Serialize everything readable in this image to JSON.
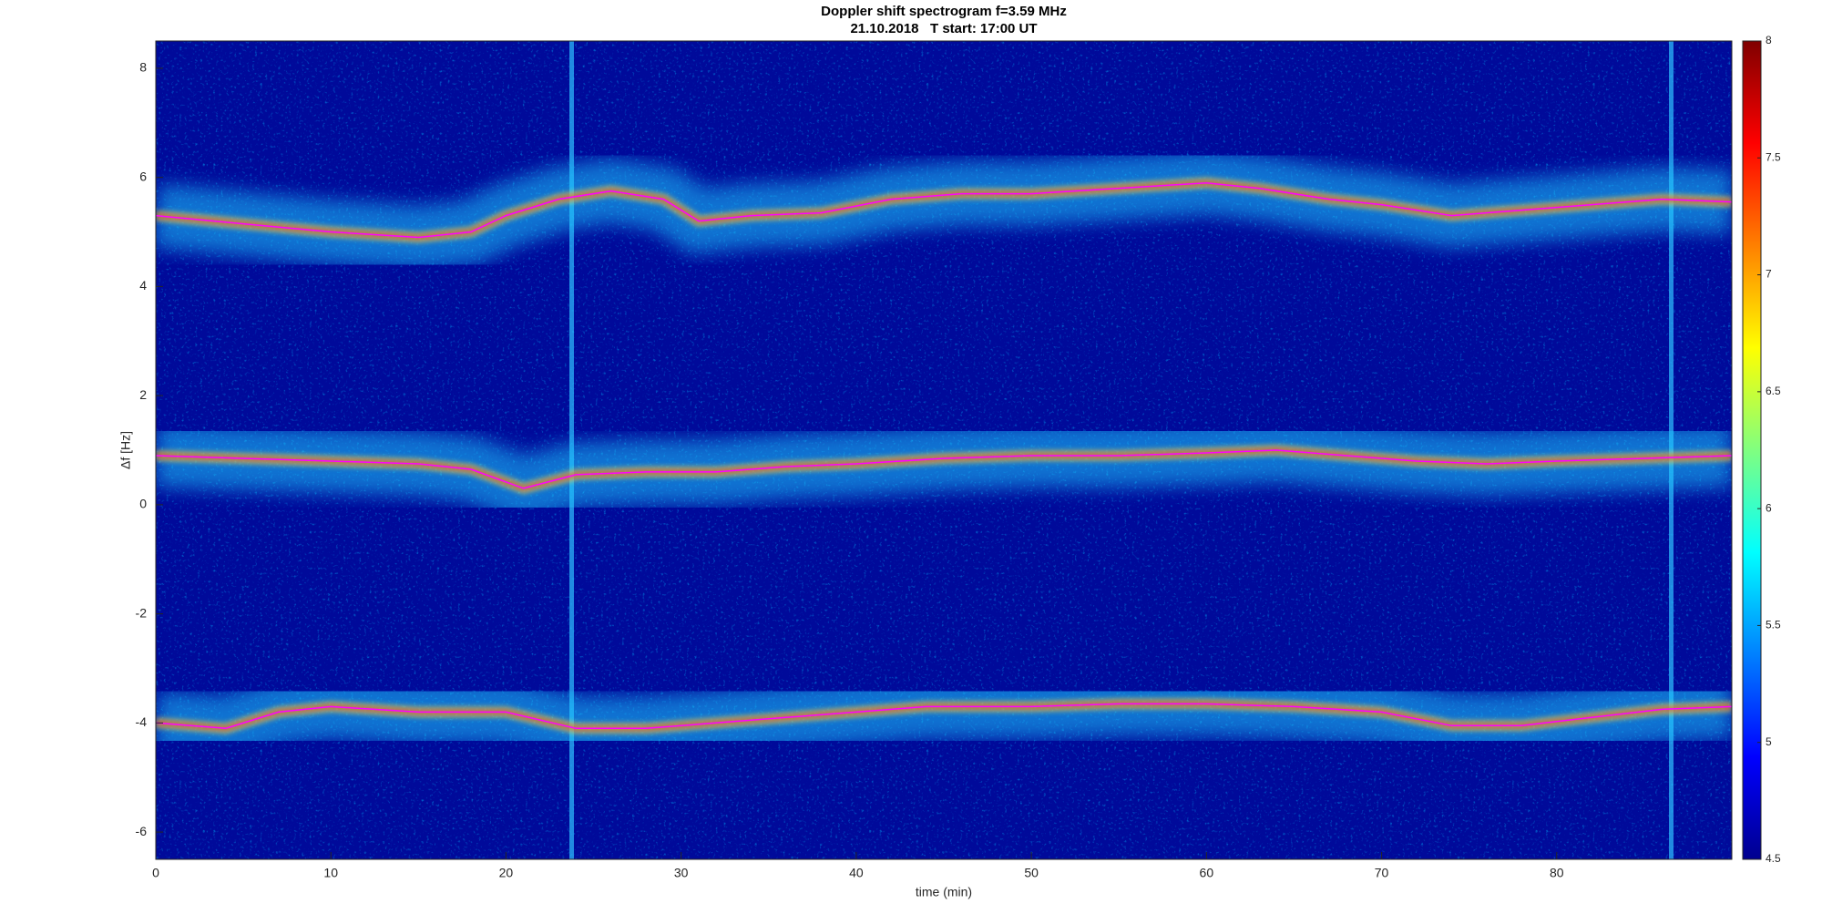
{
  "chart_data": {
    "type": "spectrogram",
    "title": "Doppler shift spectrogram f=3.59 MHz",
    "subtitle": "21.10.2018   T start: 17:00 UT",
    "xlabel": "time (min)",
    "ylabel": "Δf [Hz]",
    "xlim": [
      0,
      90
    ],
    "xticks": [
      0,
      10,
      20,
      30,
      40,
      50,
      60,
      70,
      80
    ],
    "ylim": [
      -6.5,
      8.5
    ],
    "yticks": [
      -6,
      -4,
      -2,
      0,
      2,
      4,
      6,
      8
    ],
    "colormap": "jet",
    "clim": [
      4.5,
      8
    ],
    "cticks": [
      4.5,
      5,
      5.5,
      6,
      6.5,
      7,
      7.5,
      8
    ],
    "series": [
      {
        "color": "#ff00ff",
        "x": [
          0,
          5,
          10,
          15,
          18,
          20,
          23,
          26,
          29,
          31,
          34,
          38,
          42,
          46,
          50,
          55,
          60,
          63,
          67,
          70,
          74,
          78,
          82,
          86,
          90
        ],
        "values": [
          5.3,
          5.15,
          5.0,
          4.9,
          5.0,
          5.3,
          5.6,
          5.75,
          5.6,
          5.2,
          5.3,
          5.35,
          5.6,
          5.7,
          5.7,
          5.8,
          5.9,
          5.8,
          5.6,
          5.5,
          5.3,
          5.4,
          5.5,
          5.6,
          5.55
        ]
      },
      {
        "color": "#ff00ff",
        "x": [
          0,
          5,
          10,
          15,
          18,
          21,
          24,
          28,
          32,
          36,
          40,
          45,
          50,
          55,
          60,
          64,
          68,
          72,
          76,
          80,
          85,
          90
        ],
        "values": [
          0.9,
          0.85,
          0.8,
          0.75,
          0.65,
          0.3,
          0.55,
          0.6,
          0.6,
          0.7,
          0.75,
          0.85,
          0.9,
          0.9,
          0.95,
          1.0,
          0.9,
          0.8,
          0.75,
          0.8,
          0.85,
          0.9
        ]
      },
      {
        "color": "#ff00ff",
        "x": [
          0,
          4,
          7,
          10,
          15,
          20,
          24,
          28,
          32,
          36,
          40,
          44,
          50,
          55,
          60,
          65,
          70,
          74,
          78,
          82,
          86,
          90
        ],
        "values": [
          -4.0,
          -4.1,
          -3.8,
          -3.7,
          -3.8,
          -3.8,
          -4.1,
          -4.1,
          -4.0,
          -3.9,
          -3.8,
          -3.7,
          -3.7,
          -3.65,
          -3.65,
          -3.7,
          -3.8,
          -4.05,
          -4.05,
          -3.9,
          -3.75,
          -3.7
        ]
      }
    ]
  }
}
